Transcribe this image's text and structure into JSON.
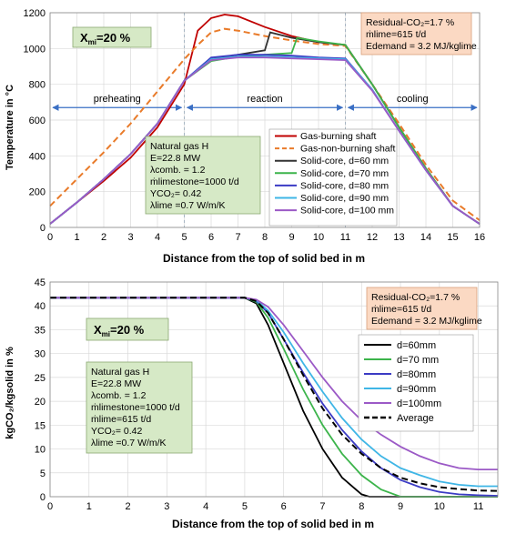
{
  "chart_data": [
    {
      "type": "line",
      "xlabel": "Distance from the top of solid bed in m",
      "ylabel": "Temperature in °C",
      "xlim": [
        0,
        16
      ],
      "ylim": [
        0,
        1200
      ],
      "xticks": [
        0,
        1,
        2,
        3,
        4,
        5,
        6,
        7,
        8,
        9,
        10,
        11,
        12,
        13,
        14,
        15,
        16
      ],
      "yticks": [
        0,
        200,
        400,
        600,
        800,
        1000,
        1200
      ],
      "grid": true,
      "legend_position": "bottom-right",
      "zones": [
        "preheating",
        "reaction",
        "cooling"
      ],
      "zone_bounds": [
        0,
        5,
        11,
        16
      ],
      "box_xmi": {
        "label": "X",
        "sub": "mi",
        "value": "=20 %"
      },
      "box_residual": {
        "line1": "Residual-CO₂=1.7 %",
        "line2": "ṁlime=615 t/d",
        "line3": "Edemand = 3.2 MJ/kglime"
      },
      "box_params": [
        "Natural gas H",
        "E=22.8 MW",
        "λcomb. = 1.2",
        "ṁlimestone=1000 t/d",
        "YCO₂= 0.42",
        "λlime =0.7 W/m/K"
      ],
      "series": [
        {
          "name": "Gas-burning shaft",
          "color": "#c00000",
          "dash": "solid",
          "x": [
            0,
            1,
            2,
            3,
            4,
            5,
            5.5,
            6,
            6.5,
            7,
            8,
            9,
            10,
            11,
            12,
            13,
            14,
            15,
            16
          ],
          "y": [
            20,
            140,
            260,
            390,
            560,
            800,
            1100,
            1170,
            1190,
            1180,
            1120,
            1070,
            1035,
            1020,
            800,
            560,
            330,
            120,
            20
          ]
        },
        {
          "name": "Gas-non-burning shaft",
          "color": "#e97b2a",
          "dash": "dash",
          "x": [
            0,
            1,
            2,
            3,
            4,
            5,
            5.5,
            6,
            6.5,
            7,
            8,
            9,
            10,
            11,
            12,
            13,
            14,
            15,
            16
          ],
          "y": [
            120,
            270,
            420,
            580,
            760,
            940,
            1020,
            1090,
            1110,
            1100,
            1070,
            1045,
            1025,
            1015,
            800,
            580,
            350,
            150,
            40
          ]
        },
        {
          "name": "Solid-core, d=60 mm",
          "color": "#333333",
          "dash": "solid",
          "x": [
            0,
            1,
            2,
            3,
            4,
            5,
            6,
            7,
            8,
            8.2,
            9,
            10,
            11,
            12,
            13,
            14,
            15,
            16
          ],
          "y": [
            20,
            140,
            270,
            410,
            580,
            820,
            940,
            965,
            990,
            1090,
            1060,
            1035,
            1020,
            800,
            560,
            330,
            120,
            20
          ]
        },
        {
          "name": "Solid-core, d=70 mm",
          "color": "#3cb44b",
          "dash": "solid",
          "x": [
            0,
            1,
            2,
            3,
            4,
            5,
            6,
            7,
            8,
            9,
            9.2,
            10,
            11,
            12,
            13,
            14,
            15,
            16
          ],
          "y": [
            20,
            140,
            270,
            410,
            580,
            820,
            930,
            955,
            965,
            975,
            1060,
            1040,
            1020,
            800,
            560,
            330,
            120,
            20
          ]
        },
        {
          "name": "Solid-core, d=80 mm",
          "color": "#3b3bc4",
          "dash": "solid",
          "x": [
            0,
            1,
            2,
            3,
            4,
            5,
            6,
            7,
            8,
            9,
            10,
            11,
            12,
            13,
            14,
            15,
            16
          ],
          "y": [
            20,
            140,
            270,
            410,
            580,
            820,
            950,
            965,
            965,
            960,
            950,
            945,
            770,
            540,
            320,
            120,
            20
          ]
        },
        {
          "name": "Solid-core, d=90 mm",
          "color": "#3fb6e6",
          "dash": "solid",
          "x": [
            0,
            1,
            2,
            3,
            4,
            5,
            6,
            7,
            8,
            9,
            10,
            11,
            12,
            13,
            14,
            15,
            16
          ],
          "y": [
            20,
            140,
            270,
            410,
            580,
            820,
            940,
            955,
            955,
            950,
            945,
            940,
            770,
            540,
            320,
            120,
            20
          ]
        },
        {
          "name": "Solid-core, d=100 mm",
          "color": "#9b59c6",
          "dash": "solid",
          "x": [
            0,
            1,
            2,
            3,
            4,
            5,
            6,
            7,
            8,
            9,
            10,
            11,
            12,
            13,
            14,
            15,
            16
          ],
          "y": [
            20,
            140,
            270,
            410,
            580,
            820,
            935,
            950,
            950,
            945,
            940,
            935,
            765,
            540,
            320,
            120,
            20
          ]
        }
      ]
    },
    {
      "type": "line",
      "xlabel": "Distance from the top of solid bed in m",
      "ylabel": "kgCO₂/kgsolid in %",
      "xlim": [
        0,
        11.5
      ],
      "ylim": [
        0,
        45
      ],
      "xticks": [
        0,
        1,
        2,
        3,
        4,
        5,
        6,
        7,
        8,
        9,
        10,
        11
      ],
      "yticks": [
        0,
        5,
        10,
        15,
        20,
        25,
        30,
        35,
        40,
        45
      ],
      "grid": true,
      "legend_position": "right",
      "box_xmi": {
        "label": "X",
        "sub": "mi",
        "value": "=20 %"
      },
      "box_residual": {
        "line1": "Residual-CO₂=1.7 %",
        "line2": "ṁlime=615 t/d",
        "line3": "Edemand = 3.2 MJ/kglime"
      },
      "box_params": [
        "Natural gas H",
        "E=22.8 MW",
        "λcomb. = 1.2",
        "ṁlimestone=1000 t/d",
        "ṁlime=615 t/d",
        "YCO₂= 0.42",
        "λlime =0.7 W/m/K"
      ],
      "series": [
        {
          "name": "d=60mm",
          "color": "#000000",
          "dash": "solid",
          "x": [
            0,
            5,
            5.3,
            5.6,
            6,
            6.5,
            7,
            7.5,
            8,
            8.2,
            11.5
          ],
          "y": [
            41.7,
            41.7,
            40.5,
            36,
            28,
            18,
            10,
            4,
            0.5,
            0,
            0
          ]
        },
        {
          "name": "d=70 mm",
          "color": "#3cb44b",
          "dash": "solid",
          "x": [
            0,
            5,
            5.3,
            5.6,
            6,
            6.5,
            7,
            7.5,
            8,
            8.5,
            9,
            11.5
          ],
          "y": [
            41.7,
            41.7,
            40.8,
            37.5,
            31,
            22.5,
            15,
            9,
            4.5,
            1.5,
            0,
            0
          ]
        },
        {
          "name": "d=80mm",
          "color": "#3b3bc4",
          "dash": "solid",
          "x": [
            0,
            5,
            5.3,
            5.6,
            6,
            6.5,
            7,
            7.5,
            8,
            8.5,
            9,
            9.5,
            10,
            10.5,
            11,
            11.5
          ],
          "y": [
            41.7,
            41.7,
            41,
            38.5,
            33,
            26,
            19.5,
            14,
            9.5,
            6,
            3.5,
            2,
            1,
            0.5,
            0.3,
            0.2
          ]
        },
        {
          "name": "d=90mm",
          "color": "#3fb6e6",
          "dash": "solid",
          "x": [
            0,
            5,
            5.3,
            5.6,
            6,
            6.5,
            7,
            7.5,
            8,
            8.5,
            9,
            9.5,
            10,
            10.5,
            11,
            11.5
          ],
          "y": [
            41.7,
            41.7,
            41.2,
            39,
            34.5,
            28,
            22,
            16.5,
            12,
            8.5,
            6,
            4.5,
            3.2,
            2.5,
            2.2,
            2.2
          ]
        },
        {
          "name": "d=100mm",
          "color": "#9b59c6",
          "dash": "solid",
          "x": [
            0,
            5,
            5.3,
            5.6,
            6,
            6.5,
            7,
            7.5,
            8,
            8.5,
            9,
            9.5,
            10,
            10.5,
            11,
            11.5
          ],
          "y": [
            41.7,
            41.7,
            41.3,
            39.8,
            36,
            30.5,
            25,
            20,
            16,
            13,
            10.5,
            8.5,
            7,
            6,
            5.7,
            5.7
          ]
        },
        {
          "name": "Average",
          "color": "#000000",
          "dash": "dash",
          "x": [
            0,
            5,
            5.3,
            5.6,
            6,
            6.5,
            7,
            7.5,
            8,
            8.5,
            9,
            9.5,
            10,
            10.5,
            11,
            11.5
          ],
          "y": [
            41.7,
            41.7,
            41,
            38.5,
            33,
            25.5,
            18.5,
            13,
            9,
            6,
            4,
            2.8,
            2,
            1.6,
            1.3,
            1.2
          ]
        }
      ]
    }
  ]
}
